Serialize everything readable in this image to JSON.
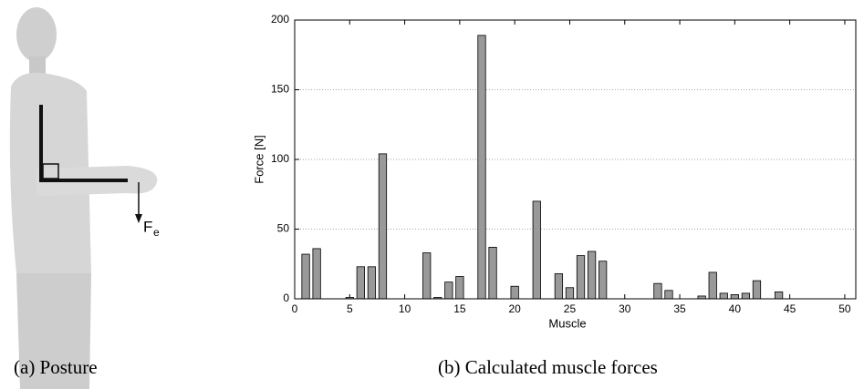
{
  "figure": {
    "force_symbol": "F",
    "force_subscript": "e"
  },
  "captions": [
    "(a) Posture",
    "(b) Calculated muscle forces"
  ],
  "chart_data": {
    "type": "bar",
    "x_label": "Muscle",
    "y_label": "Force [N]",
    "x": [
      1,
      2,
      5,
      6,
      7,
      8,
      12,
      13,
      14,
      15,
      17,
      18,
      20,
      22,
      24,
      25,
      26,
      27,
      28,
      33,
      34,
      37,
      38,
      39,
      40,
      41,
      42,
      44
    ],
    "values": [
      32,
      36,
      1,
      23,
      23,
      104,
      33,
      1,
      12,
      16,
      189,
      37,
      9,
      70,
      18,
      8,
      31,
      34,
      27,
      11,
      6,
      2,
      19,
      4,
      3,
      4,
      13,
      5
    ],
    "color": "#999999",
    "xlim": [
      0,
      51
    ],
    "ylim": [
      0,
      200
    ],
    "xticks": [
      0,
      5,
      10,
      15,
      20,
      25,
      30,
      35,
      40,
      45,
      50
    ],
    "yticks": [
      0,
      50,
      100,
      150,
      200
    ],
    "grid": true
  }
}
